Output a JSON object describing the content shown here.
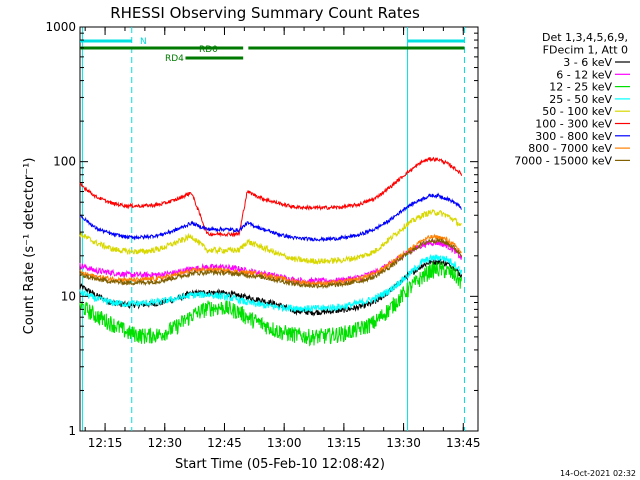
{
  "chart_data": {
    "type": "line",
    "title": "RHESSI Observing Summary Count Rates",
    "xlabel": "Start Time (05-Feb-10 12:08:42)",
    "ylabel": "Count Rate (s⁻¹ detector⁻¹)",
    "y_scale": "log",
    "ylim": [
      1,
      1000
    ],
    "xlim_minutes": [
      0,
      100
    ],
    "x_ticks": [
      {
        "minute": 6.3,
        "label": "12:15"
      },
      {
        "minute": 21.3,
        "label": "12:30"
      },
      {
        "minute": 36.3,
        "label": "12:45"
      },
      {
        "minute": 51.3,
        "label": "13:00"
      },
      {
        "minute": 66.3,
        "label": "13:15"
      },
      {
        "minute": 81.3,
        "label": "13:30"
      },
      {
        "minute": 96.3,
        "label": "13:45"
      }
    ],
    "y_ticks": [
      {
        "value": 1,
        "label": "1"
      },
      {
        "value": 10,
        "label": "10"
      },
      {
        "value": 100,
        "label": "100"
      },
      {
        "value": 1000,
        "label": "1000"
      }
    ],
    "legend_header": [
      "Det 1,3,4,5,6,9,",
      "FDecim 1, Att 0"
    ],
    "legend_position": "right",
    "timestamp": "14-Oct-2021 02:32",
    "vertical_markers": [
      {
        "minute": 0.6,
        "style": "solid",
        "color": "#00e0e0"
      },
      {
        "minute": 13.0,
        "style": "dashed",
        "color": "#00e0e0"
      },
      {
        "minute": 82.3,
        "style": "solid",
        "color": "#00e0e0"
      },
      {
        "minute": 96.6,
        "style": "dashed",
        "color": "#00e0e0"
      }
    ],
    "flag_bars": [
      {
        "label": "N",
        "color": "#00e0e0",
        "segments": [
          [
            0,
            13.0
          ],
          [
            82.3,
            96.6
          ]
        ]
      },
      {
        "label": "RD0",
        "color": "#007a00",
        "segments": [
          [
            0,
            41.0
          ],
          [
            42.3,
            96.6
          ]
        ]
      },
      {
        "label": "RD4",
        "color": "#007a00",
        "segments": [
          [
            26.5,
            41.0
          ]
        ]
      }
    ],
    "series": [
      {
        "name": "3 - 6 keV",
        "color": "#000000",
        "x": [
          0,
          4,
          8,
          12,
          16,
          20,
          24,
          28,
          32,
          36,
          40,
          42,
          46,
          50,
          54,
          58,
          62,
          66,
          70,
          74,
          78,
          82,
          86,
          88,
          90,
          92,
          94,
          96
        ],
        "y": [
          12,
          10.2,
          9,
          8.6,
          8.7,
          8.9,
          9.6,
          10.5,
          10.7,
          10.6,
          10.1,
          9.8,
          9.3,
          8.6,
          7.8,
          7.6,
          7.7,
          7.9,
          8.3,
          9,
          11,
          14,
          17,
          18,
          18,
          17.5,
          16.5,
          14
        ]
      },
      {
        "name": "6 - 12 keV",
        "color": "#ff00ff",
        "x": [
          0,
          4,
          8,
          12,
          16,
          20,
          24,
          28,
          32,
          36,
          40,
          42,
          46,
          50,
          54,
          58,
          62,
          66,
          70,
          74,
          78,
          82,
          86,
          88,
          90,
          92,
          94,
          96
        ],
        "y": [
          17,
          15.5,
          15,
          14.5,
          14.4,
          14.5,
          15,
          16,
          16.5,
          16.5,
          16,
          15.5,
          14.8,
          14,
          13.2,
          13,
          13,
          13.2,
          13.8,
          15,
          17.5,
          21,
          24,
          25,
          25,
          24,
          22,
          19
        ]
      },
      {
        "name": "12 - 25 keV",
        "color": "#00e000",
        "x": [
          0,
          4,
          8,
          12,
          16,
          20,
          24,
          28,
          32,
          36,
          40,
          42,
          46,
          50,
          54,
          58,
          62,
          66,
          70,
          74,
          78,
          82,
          86,
          88,
          90,
          92,
          94,
          96
        ],
        "y": [
          8.6,
          7.2,
          6.3,
          5.4,
          5.1,
          5.2,
          5.9,
          7.2,
          8.2,
          8.3,
          7.7,
          7.0,
          6.2,
          5.5,
          5.2,
          5.0,
          5.1,
          5.3,
          5.7,
          6.4,
          8.2,
          11,
          14,
          15.5,
          16,
          15.5,
          14.5,
          12.5
        ]
      },
      {
        "name": "25 - 50 keV",
        "color": "#00ffff",
        "x": [
          0,
          4,
          8,
          12,
          16,
          20,
          24,
          28,
          32,
          36,
          40,
          42,
          46,
          50,
          54,
          58,
          62,
          66,
          70,
          74,
          78,
          82,
          86,
          88,
          90,
          92,
          94,
          96
        ],
        "y": [
          10.8,
          9.6,
          9.0,
          8.8,
          8.9,
          9.1,
          9.6,
          10.2,
          10.3,
          10.0,
          9.4,
          9.0,
          8.6,
          8.3,
          8.2,
          8.1,
          8.2,
          8.4,
          8.9,
          9.6,
          11.2,
          14,
          18,
          19,
          19.5,
          19,
          17.5,
          15
        ]
      },
      {
        "name": "50 - 100 keV",
        "color": "#d8d800",
        "x": [
          0,
          4,
          8,
          12,
          16,
          20,
          24,
          28,
          32,
          36,
          40,
          42,
          46,
          50,
          54,
          58,
          62,
          66,
          70,
          74,
          78,
          82,
          86,
          88,
          90,
          92,
          94,
          96
        ],
        "y": [
          29,
          25,
          22.5,
          21.5,
          21.5,
          22.5,
          25,
          28,
          22,
          22,
          22,
          25.5,
          23,
          20.5,
          18.8,
          18.3,
          18.3,
          18.6,
          19.5,
          21.5,
          27,
          34,
          40,
          42,
          42,
          40,
          37,
          33
        ]
      },
      {
        "name": "100 - 300 keV",
        "color": "#ff0000",
        "x": [
          0,
          4,
          8,
          12,
          16,
          20,
          24,
          28,
          32,
          36,
          40,
          42,
          46,
          50,
          54,
          58,
          62,
          66,
          70,
          74,
          78,
          82,
          86,
          88,
          90,
          92,
          94,
          96
        ],
        "y": [
          68,
          55,
          49,
          47,
          47,
          48,
          52,
          59,
          29,
          29,
          29,
          60,
          53,
          49,
          46,
          45.5,
          45.5,
          46,
          48,
          53,
          65,
          82,
          100,
          105,
          104,
          98,
          90,
          80
        ]
      },
      {
        "name": "300 - 800 keV",
        "color": "#0000ff",
        "x": [
          0,
          4,
          8,
          12,
          16,
          20,
          24,
          28,
          32,
          36,
          40,
          42,
          46,
          50,
          54,
          58,
          62,
          66,
          70,
          74,
          78,
          82,
          86,
          88,
          90,
          92,
          94,
          96
        ],
        "y": [
          40,
          32,
          29,
          27.5,
          27.5,
          28.5,
          31,
          35,
          31.5,
          31.5,
          31,
          35,
          31.5,
          28.8,
          27.1,
          26.6,
          26.6,
          27.1,
          28.5,
          31.5,
          37,
          46,
          53,
          56,
          56,
          53.5,
          50,
          45
        ]
      },
      {
        "name": "800 - 7000 keV",
        "color": "#ff8000",
        "x": [
          0,
          4,
          8,
          12,
          16,
          20,
          24,
          28,
          32,
          36,
          40,
          42,
          46,
          50,
          54,
          58,
          62,
          66,
          70,
          74,
          78,
          82,
          86,
          88,
          90,
          92,
          94,
          96
        ],
        "y": [
          15,
          14,
          13.5,
          13.2,
          13.3,
          13.6,
          14.4,
          15.5,
          15.8,
          15.6,
          15.2,
          15.0,
          14.5,
          13.7,
          12.9,
          12.5,
          12.5,
          12.8,
          13.5,
          14.7,
          17.5,
          21.5,
          26,
          27.5,
          27.5,
          26.5,
          24,
          21
        ]
      },
      {
        "name": "7000 - 15000 keV",
        "color": "#806000",
        "x": [
          0,
          4,
          8,
          12,
          16,
          20,
          24,
          28,
          32,
          36,
          40,
          42,
          46,
          50,
          54,
          58,
          62,
          66,
          70,
          74,
          78,
          82,
          86,
          88,
          90,
          92,
          94,
          96
        ],
        "y": [
          14.5,
          13.4,
          12.9,
          12.6,
          12.7,
          13.0,
          13.8,
          14.8,
          15.1,
          15.0,
          14.6,
          14.4,
          13.9,
          13.1,
          12.4,
          12.0,
          12.0,
          12.3,
          12.9,
          14.0,
          16.6,
          20.5,
          24.5,
          26,
          26,
          25,
          23,
          20
        ]
      }
    ]
  }
}
